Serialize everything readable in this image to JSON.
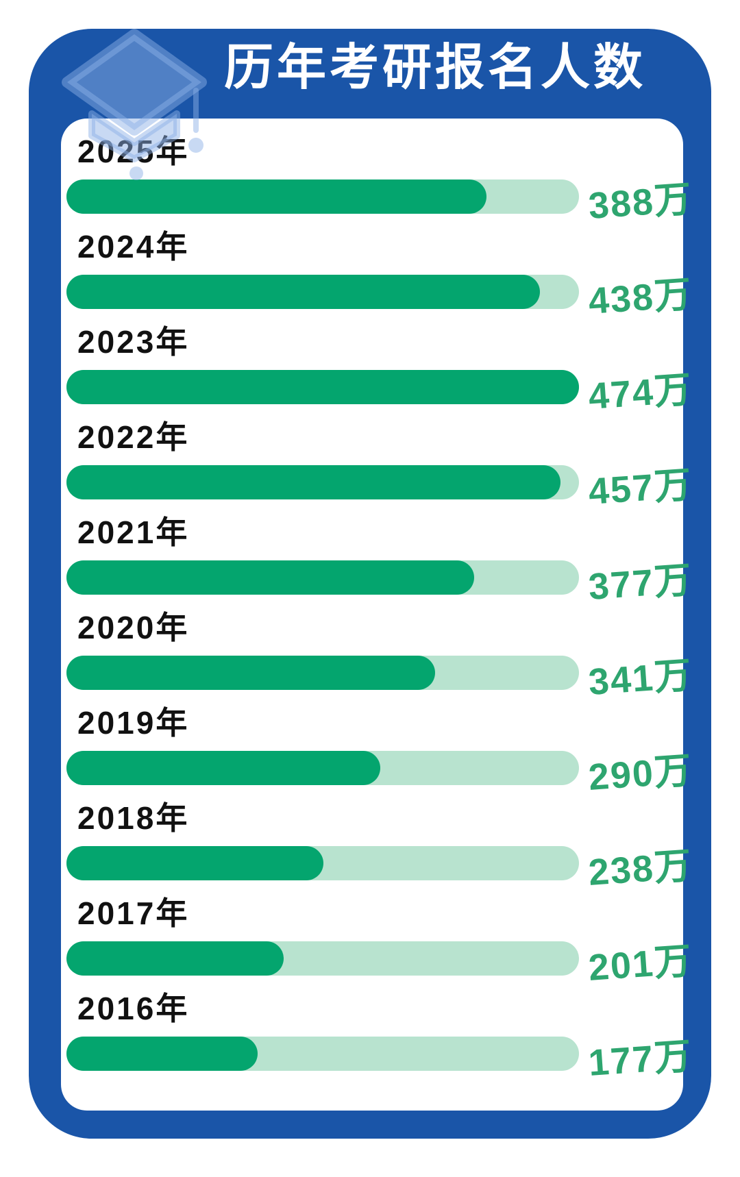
{
  "title": "历年考研报名人数",
  "colors": {
    "frame_blue": "#1A55A8",
    "card_bg": "#FFFFFF",
    "title_text": "#FFFFFF",
    "bar_fill": "#04A56E",
    "bar_track": "#B8E3CF",
    "value_text": "#2EA56F",
    "label_text": "#111111",
    "cap_icon": "rgba(140,175,230,0.48)"
  },
  "icon": {
    "name": "graduation-cap-icon"
  },
  "chart_data": {
    "type": "bar",
    "orientation": "horizontal",
    "title": "历年考研报名人数",
    "categories": [
      "2025年",
      "2024年",
      "2023年",
      "2022年",
      "2021年",
      "2020年",
      "2019年",
      "2018年",
      "2017年",
      "2016年"
    ],
    "values": [
      388,
      438,
      474,
      457,
      377,
      341,
      290,
      238,
      201,
      177
    ],
    "value_labels": [
      "388万",
      "438万",
      "474万",
      "457万",
      "377万",
      "341万",
      "290万",
      "238万",
      "201万",
      "177万"
    ],
    "unit": "万",
    "xlabel": "",
    "ylabel": "",
    "xlim": [
      0,
      474
    ],
    "grid": false,
    "legend": false
  },
  "rows": [
    {
      "year": "2025年",
      "value_label": "388万",
      "pct": "81.9%"
    },
    {
      "year": "2024年",
      "value_label": "438万",
      "pct": "92.4%"
    },
    {
      "year": "2023年",
      "value_label": "474万",
      "pct": "100%"
    },
    {
      "year": "2022年",
      "value_label": "457万",
      "pct": "96.4%"
    },
    {
      "year": "2021年",
      "value_label": "377万",
      "pct": "79.5%"
    },
    {
      "year": "2020年",
      "value_label": "341万",
      "pct": "71.9%"
    },
    {
      "year": "2019年",
      "value_label": "290万",
      "pct": "61.2%"
    },
    {
      "year": "2018年",
      "value_label": "238万",
      "pct": "50.2%"
    },
    {
      "year": "2017年",
      "value_label": "201万",
      "pct": "42.4%"
    },
    {
      "year": "2016年",
      "value_label": "177万",
      "pct": "37.3%"
    }
  ]
}
